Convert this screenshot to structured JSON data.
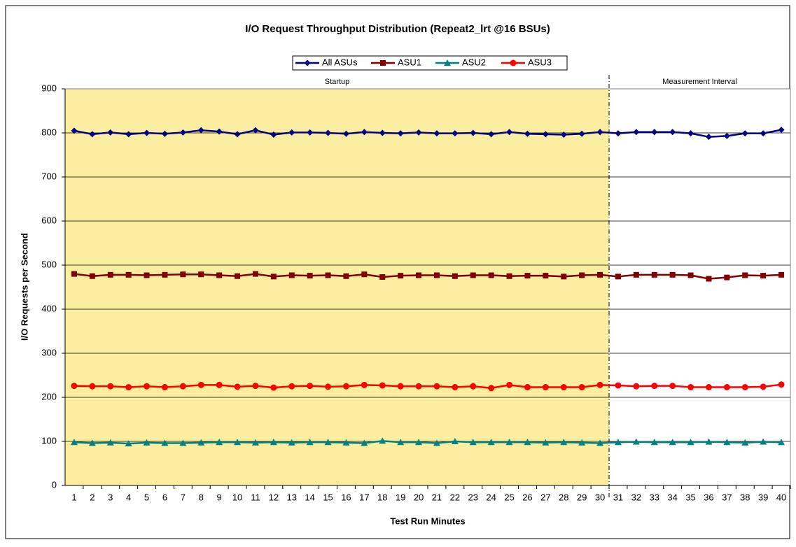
{
  "chart_data": {
    "type": "line",
    "title": "I/O Request Throughput Distribution (Repeat2_lrt @16 BSUs)",
    "x_label": "Test Run Minutes",
    "y_label": "I/O Requests per Second",
    "categories": [
      "1",
      "2",
      "3",
      "4",
      "5",
      "6",
      "7",
      "8",
      "9",
      "10",
      "11",
      "12",
      "13",
      "14",
      "15",
      "16",
      "17",
      "18",
      "19",
      "20",
      "21",
      "22",
      "23",
      "24",
      "25",
      "26",
      "27",
      "28",
      "29",
      "30",
      "31",
      "32",
      "33",
      "34",
      "35",
      "36",
      "37",
      "38",
      "39",
      "40"
    ],
    "regions": [
      {
        "label": "Startup",
        "from": "1",
        "to": "30",
        "color": "#fbeea0"
      },
      {
        "label": "Measurement Interval",
        "from": "31",
        "to": "40",
        "color": "#ffffff"
      }
    ],
    "series": [
      {
        "name": "All ASUs",
        "color": "#000080",
        "marker": "diamond",
        "values": [
          805,
          797,
          801,
          797,
          800,
          798,
          801,
          806,
          803,
          797,
          806,
          796,
          801,
          801,
          800,
          798,
          802,
          800,
          799,
          801,
          799,
          799,
          800,
          797,
          802,
          798,
          797,
          796,
          798,
          802,
          799,
          802,
          802,
          802,
          799,
          791,
          793,
          799,
          799,
          807
        ]
      },
      {
        "name": "ASU1",
        "color": "#800000",
        "marker": "square",
        "values": [
          480,
          475,
          478,
          478,
          477,
          478,
          479,
          479,
          477,
          475,
          480,
          474,
          477,
          476,
          477,
          475,
          479,
          473,
          476,
          477,
          477,
          475,
          477,
          477,
          475,
          476,
          476,
          474,
          477,
          478,
          474,
          478,
          478,
          478,
          477,
          469,
          472,
          477,
          476,
          478
        ]
      },
      {
        "name": "ASU2",
        "color": "#008080",
        "marker": "triangle",
        "values": [
          98,
          96,
          97,
          95,
          97,
          96,
          96,
          97,
          98,
          98,
          97,
          98,
          97,
          98,
          98,
          97,
          96,
          101,
          98,
          98,
          96,
          100,
          98,
          98,
          98,
          98,
          97,
          98,
          97,
          96,
          98,
          99,
          98,
          98,
          98,
          99,
          98,
          97,
          99,
          98
        ]
      },
      {
        "name": "ASU3",
        "color": "#ff0000",
        "marker": "circle",
        "values": [
          226,
          225,
          225,
          223,
          225,
          223,
          225,
          228,
          228,
          224,
          226,
          222,
          225,
          226,
          224,
          225,
          228,
          227,
          225,
          225,
          225,
          223,
          225,
          221,
          228,
          223,
          223,
          223,
          223,
          228,
          227,
          225,
          226,
          226,
          223,
          223,
          223,
          223,
          224,
          229
        ]
      }
    ],
    "ylim": [
      0,
      900
    ],
    "yticks": [
      0,
      100,
      200,
      300,
      400,
      500,
      600,
      700,
      800,
      900
    ],
    "grid": true
  }
}
